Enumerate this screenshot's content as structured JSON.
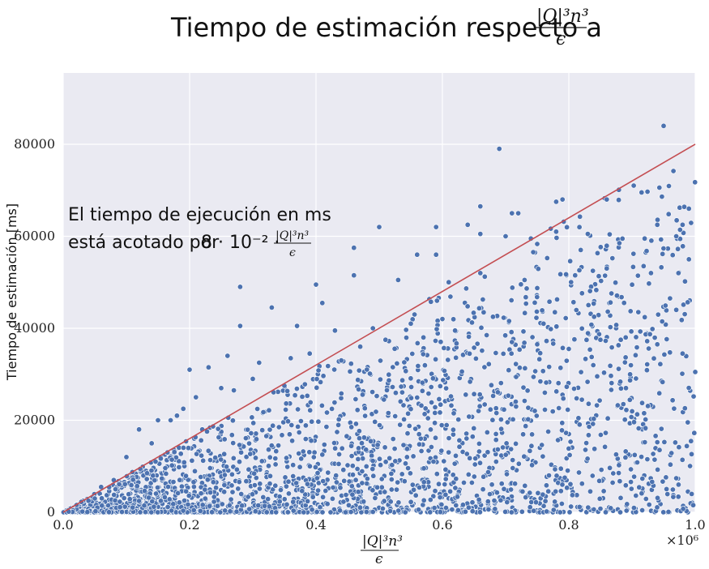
{
  "chart_data": {
    "type": "scatter",
    "title": "Tiempo de estimación respecto a",
    "title_fraction": {
      "numerator": "|Q|³n³",
      "denominator": "ϵ"
    },
    "xlabel_fraction": {
      "numerator": "|Q|³n³",
      "denominator": "ϵ"
    },
    "ylabel": "Tiempo de estimación [ms]",
    "x_multiplier": "×10⁶",
    "xlim": [
      0,
      1.0
    ],
    "ylim": [
      0,
      95500
    ],
    "x_ticks": [
      "0.0",
      "0.2",
      "0.4",
      "0.6",
      "0.8",
      "1.0"
    ],
    "y_ticks": [
      "0",
      "20000",
      "40000",
      "60000",
      "80000"
    ],
    "grid": true,
    "bound_line": {
      "slope_ms_per_unit": 80000,
      "from": [
        0,
        0
      ],
      "to": [
        1.0,
        80000
      ],
      "color": "#c44e52"
    },
    "annotation": {
      "line1": "El tiempo de ejecución en ms",
      "line2_prefix": "está acotado por",
      "line2_math": "8 · 10⁻² ·",
      "frac_numerator": "|Q|³n³",
      "frac_denominator": "ϵ"
    },
    "point_color": "#4c72b0",
    "background": "#eaeaf2",
    "points": [
      [
        0.95,
        84000
      ],
      [
        0.69,
        79000
      ],
      [
        0.79,
        68000
      ],
      [
        0.78,
        67500
      ],
      [
        0.86,
        68000
      ],
      [
        0.66,
        66500
      ],
      [
        0.99,
        66000
      ],
      [
        0.98,
        62500
      ],
      [
        0.94,
        62500
      ],
      [
        0.71,
        65000
      ],
      [
        0.72,
        65000
      ],
      [
        0.64,
        62500
      ],
      [
        0.59,
        62000
      ],
      [
        0.5,
        62000
      ],
      [
        0.46,
        57500
      ],
      [
        0.56,
        56000
      ],
      [
        0.59,
        56000
      ],
      [
        0.66,
        60500
      ],
      [
        0.7,
        60000
      ],
      [
        0.74,
        59500
      ],
      [
        0.78,
        61000
      ],
      [
        0.83,
        60500
      ],
      [
        0.88,
        58500
      ],
      [
        0.92,
        59500
      ],
      [
        0.97,
        60000
      ],
      [
        0.28,
        49000
      ],
      [
        0.4,
        49500
      ],
      [
        0.46,
        51500
      ],
      [
        0.53,
        50500
      ],
      [
        0.61,
        50000
      ],
      [
        0.66,
        52000
      ],
      [
        0.73,
        50500
      ],
      [
        0.81,
        51500
      ],
      [
        0.86,
        53000
      ],
      [
        0.93,
        52000
      ],
      [
        0.99,
        55000
      ],
      [
        0.41,
        45500
      ],
      [
        0.33,
        44500
      ],
      [
        0.28,
        40500
      ],
      [
        0.37,
        40500
      ],
      [
        0.43,
        39500
      ],
      [
        0.49,
        40000
      ],
      [
        0.55,
        41000
      ],
      [
        0.6,
        42000
      ],
      [
        0.68,
        42500
      ],
      [
        0.76,
        41000
      ],
      [
        0.84,
        42500
      ],
      [
        0.91,
        43500
      ],
      [
        0.97,
        44000
      ],
      [
        0.2,
        31000
      ],
      [
        0.23,
        31500
      ],
      [
        0.31,
        32500
      ],
      [
        0.36,
        33500
      ],
      [
        0.26,
        34000
      ],
      [
        0.17,
        20000
      ],
      [
        0.18,
        21000
      ],
      [
        0.21,
        25000
      ],
      [
        0.25,
        27000
      ],
      [
        0.14,
        15000
      ],
      [
        0.12,
        18000
      ],
      [
        0.1,
        12000
      ],
      [
        0.08,
        7000
      ],
      [
        0.06,
        5500
      ],
      [
        0.05,
        3000
      ],
      [
        0.04,
        2500
      ],
      [
        0.15,
        20000
      ],
      [
        0.19,
        22500
      ],
      [
        0.22,
        18000
      ],
      [
        0.27,
        26500
      ],
      [
        0.3,
        29000
      ],
      [
        0.35,
        27500
      ],
      [
        0.39,
        34500
      ],
      [
        0.44,
        33000
      ],
      [
        0.47,
        36000
      ],
      [
        0.51,
        37500
      ],
      [
        0.57,
        38000
      ],
      [
        0.62,
        39500
      ],
      [
        0.67,
        38500
      ],
      [
        0.71,
        37000
      ],
      [
        0.75,
        36500
      ],
      [
        0.8,
        35500
      ],
      [
        0.85,
        37500
      ],
      [
        0.89,
        38000
      ],
      [
        0.94,
        36500
      ],
      [
        0.98,
        34500
      ]
    ],
    "noise_seed": 7,
    "noise_points_count": 2600
  }
}
